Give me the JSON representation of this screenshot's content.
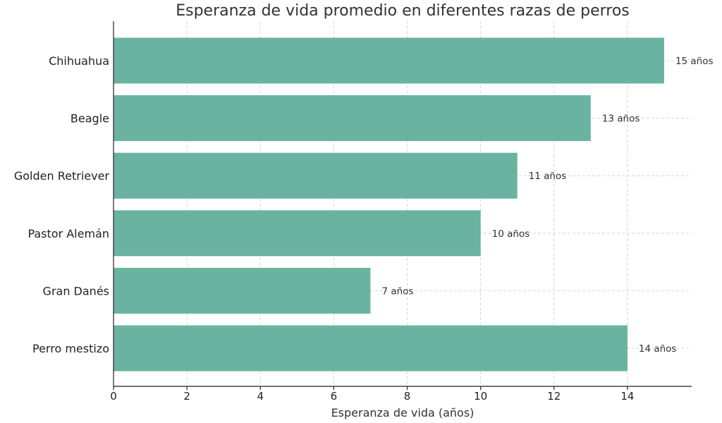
{
  "chart_data": {
    "type": "bar",
    "orientation": "horizontal",
    "title": "Esperanza de vida promedio en diferentes razas de perros",
    "xlabel": "Esperanza de vida (años)",
    "ylabel": "",
    "categories": [
      "Chihuahua",
      "Beagle",
      "Golden Retriever",
      "Pastor Alemán",
      "Gran Danés",
      "Perro mestizo"
    ],
    "values": [
      15,
      13,
      11,
      10,
      7,
      14
    ],
    "data_labels": [
      "15 años",
      "13 años",
      "11 años",
      "10 años",
      "7 años",
      "14 años"
    ],
    "xlim": [
      0,
      15.75
    ],
    "xticks": [
      0,
      2,
      4,
      6,
      8,
      10,
      12,
      14
    ],
    "grid": true,
    "bar_color": "#6bb3a1"
  }
}
